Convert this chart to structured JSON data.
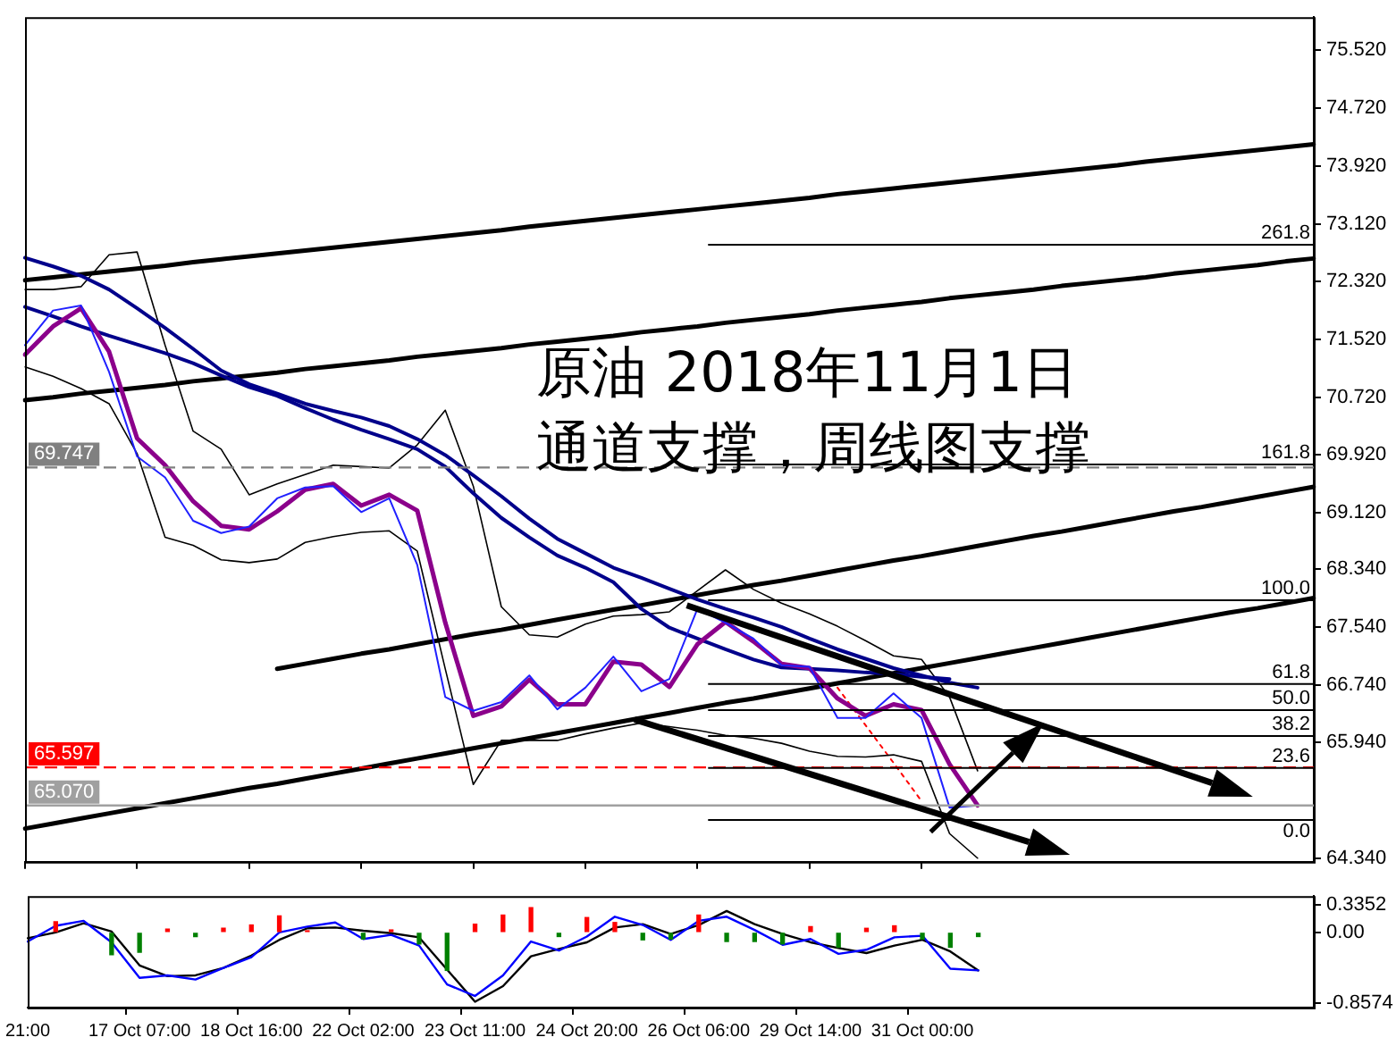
{
  "chart_data": [
    {
      "type": "line",
      "tick_labels": "y",
      "ylim": [
        64.29,
        75.98
      ],
      "categories": [
        "21:00",
        null,
        null,
        null,
        "17 Oct 07:00",
        null,
        null,
        null,
        "18 Oct 16:00",
        null,
        null,
        null,
        "22 Oct 02:00",
        null,
        null,
        null,
        "23 Oct 11:00",
        null,
        null,
        null,
        "24 Oct 20:00",
        null,
        null,
        null,
        "26 Oct 06:00",
        null,
        null,
        null,
        "29 Oct 14:00",
        null,
        null,
        null,
        "31 Oct 00:00",
        null,
        null,
        null,
        null,
        null,
        null,
        null,
        null,
        null,
        null,
        null,
        null,
        null,
        null
      ],
      "yticks": [
        {
          "value": 75.52,
          "label": "75.520"
        },
        {
          "value": 74.72,
          "label": "74.720"
        },
        {
          "value": 73.92,
          "label": "73.920"
        },
        {
          "value": 73.12,
          "label": "73.120"
        },
        {
          "value": 72.32,
          "label": "72.320"
        },
        {
          "value": 71.52,
          "label": "71.520"
        },
        {
          "value": 70.72,
          "label": "70.720"
        },
        {
          "value": 69.92,
          "label": "69.920"
        },
        {
          "value": 69.12,
          "label": "69.120"
        },
        {
          "value": 68.34,
          "label": "68.340"
        },
        {
          "value": 67.54,
          "label": "67.540"
        },
        {
          "value": 66.74,
          "label": "66.740"
        },
        {
          "value": 65.94,
          "label": "65.940"
        },
        {
          "value": 64.34,
          "label": "64.340"
        }
      ],
      "annotations": [
        "原油 2018年11月1日",
        "通道支撑，周线图支撑",
        {
          "text": "261.8",
          "y": 72.83
        },
        {
          "text": "161.8",
          "y": 69.79
        },
        {
          "text": "100.0",
          "y": 67.91
        },
        {
          "text": "61.8",
          "y": 66.75
        },
        {
          "text": "50.0",
          "y": 66.39
        },
        {
          "text": "38.2",
          "y": 66.03
        },
        {
          "text": "23.6",
          "y": 65.59
        },
        {
          "text": "0.0",
          "y": 64.87
        }
      ],
      "series": [
        {
          "color": "#2020ff",
          "values": [
            71.44,
            71.92,
            71.99,
            71.07,
            69.9,
            69.61,
            69.01,
            68.84,
            68.93,
            69.32,
            69.47,
            69.49,
            69.13,
            69.32,
            68.4,
            66.57,
            66.38,
            66.5,
            66.87,
            66.4,
            66.7,
            67.13,
            66.65,
            66.82,
            67.79,
            67.6,
            67.38,
            67.01,
            66.99,
            66.28,
            66.28,
            66.62,
            66.28,
            65.04,
            65.07,
            null,
            null,
            null,
            null,
            null,
            null,
            null,
            null,
            null,
            null,
            null,
            null
          ]
        },
        {
          "color": "#8b008b",
          "values": [
            71.31,
            71.7,
            71.95,
            71.35,
            70.15,
            69.78,
            69.28,
            68.94,
            68.89,
            69.14,
            69.44,
            69.52,
            69.22,
            69.37,
            69.15,
            67.6,
            66.31,
            66.44,
            66.81,
            66.47,
            66.47,
            67.06,
            67.02,
            66.71,
            67.3,
            67.61,
            67.34,
            67.03,
            66.97,
            66.55,
            66.31,
            66.47,
            66.39,
            65.64,
            65.07,
            null,
            null,
            null,
            null,
            null,
            null,
            null,
            null,
            null,
            null,
            null,
            null
          ]
        },
        {
          "color": "#00008b",
          "values": [
            72.65,
            72.53,
            72.4,
            72.21,
            71.95,
            71.68,
            71.39,
            71.09,
            70.9,
            70.77,
            70.63,
            70.53,
            70.44,
            70.32,
            70.14,
            69.92,
            69.64,
            69.35,
            69.04,
            68.76,
            68.56,
            68.36,
            68.22,
            68.07,
            67.92,
            67.79,
            67.67,
            67.54,
            67.38,
            67.23,
            67.1,
            66.97,
            66.87,
            66.77,
            66.7,
            null,
            null,
            null,
            null,
            null,
            null,
            null,
            null,
            null,
            null,
            null,
            null
          ]
        },
        {
          "color": "#00008b",
          "values": [
            71.97,
            71.84,
            71.7,
            71.57,
            71.45,
            71.33,
            71.19,
            71.02,
            70.86,
            70.74,
            70.57,
            70.41,
            70.27,
            70.14,
            70.0,
            69.76,
            69.39,
            69.05,
            68.78,
            68.53,
            68.36,
            68.16,
            67.79,
            67.53,
            67.38,
            67.23,
            67.09,
            66.98,
            66.96,
            66.94,
            66.91,
            66.89,
            66.85,
            66.82,
            null,
            null,
            null,
            null,
            null,
            null,
            null,
            null,
            null,
            null,
            null,
            null,
            null
          ]
        },
        {
          "color": "#000000",
          "values": [
            72.21,
            72.21,
            72.25,
            72.69,
            72.73,
            71.44,
            70.25,
            70.0,
            69.37,
            69.52,
            69.65,
            69.78,
            69.76,
            69.74,
            70.06,
            70.54,
            69.49,
            67.82,
            67.43,
            67.4,
            67.58,
            67.69,
            67.71,
            67.75,
            68.04,
            68.33,
            68.06,
            67.87,
            67.72,
            67.55,
            67.35,
            67.14,
            67.09,
            66.57,
            65.55,
            null,
            null,
            null,
            null,
            null,
            null,
            null,
            null,
            null,
            null,
            null,
            null
          ]
        },
        {
          "color": "#000000",
          "values": [
            71.14,
            71.01,
            70.84,
            70.63,
            69.94,
            68.78,
            68.67,
            68.47,
            68.43,
            68.48,
            68.71,
            68.79,
            68.85,
            68.87,
            68.59,
            66.96,
            65.36,
            65.97,
            65.97,
            65.97,
            66.06,
            66.14,
            66.21,
            66.16,
            66.11,
            66.04,
            66.0,
            65.93,
            65.82,
            65.75,
            65.74,
            65.77,
            65.68,
            64.68,
            64.34,
            null,
            null,
            null,
            null,
            null,
            null,
            null,
            null,
            null,
            null,
            null,
            null
          ]
        },
        {
          "color": "#000000",
          "values": [
            72.34,
            72.38,
            72.42,
            72.46,
            72.5,
            72.54,
            72.59,
            72.63,
            72.67,
            72.71,
            72.75,
            72.79,
            72.83,
            72.87,
            72.91,
            72.95,
            72.99,
            73.03,
            73.08,
            73.12,
            73.16,
            73.2,
            73.24,
            73.28,
            73.32,
            73.36,
            73.4,
            73.44,
            73.48,
            73.53,
            73.57,
            73.61,
            73.65,
            73.69,
            73.73,
            73.77,
            73.81,
            73.85,
            73.89,
            73.93,
            73.98,
            74.02,
            74.06,
            74.1,
            74.14,
            74.18,
            74.22
          ]
        },
        {
          "color": "#000000",
          "values": [
            70.68,
            70.72,
            70.77,
            70.81,
            70.85,
            70.89,
            70.94,
            70.98,
            71.02,
            71.06,
            71.11,
            71.15,
            71.19,
            71.23,
            71.28,
            71.32,
            71.36,
            71.4,
            71.45,
            71.49,
            71.53,
            71.57,
            71.62,
            71.66,
            71.7,
            71.75,
            71.79,
            71.83,
            71.87,
            71.92,
            71.96,
            72.0,
            72.04,
            72.09,
            72.13,
            72.17,
            72.21,
            72.26,
            72.3,
            72.34,
            72.38,
            72.43,
            72.47,
            72.51,
            72.55,
            72.6,
            72.64
          ]
        },
        {
          "color": "#000000",
          "values": [
            null,
            null,
            null,
            null,
            null,
            null,
            null,
            null,
            null,
            66.96,
            67.03,
            67.1,
            67.17,
            67.23,
            67.3,
            67.37,
            67.44,
            67.5,
            67.57,
            67.64,
            67.71,
            67.78,
            67.84,
            67.91,
            67.98,
            68.05,
            68.12,
            68.18,
            68.25,
            68.32,
            68.39,
            68.46,
            68.52,
            68.59,
            68.66,
            68.73,
            68.8,
            68.86,
            68.93,
            69.0,
            69.07,
            69.14,
            69.2,
            69.27,
            69.34,
            69.41,
            69.48
          ]
        },
        {
          "color": "#000000",
          "values": [
            64.75,
            64.82,
            64.89,
            64.96,
            65.03,
            65.1,
            65.17,
            65.24,
            65.31,
            65.37,
            65.44,
            65.51,
            65.58,
            65.65,
            65.72,
            65.79,
            65.86,
            65.93,
            66.0,
            66.07,
            66.14,
            66.21,
            66.28,
            66.35,
            66.42,
            66.49,
            66.55,
            66.62,
            66.69,
            66.76,
            66.83,
            66.9,
            66.97,
            67.04,
            67.11,
            67.18,
            67.25,
            67.32,
            67.39,
            67.46,
            67.53,
            67.6,
            67.67,
            67.74,
            67.8,
            67.87,
            67.94
          ]
        },
        {
          "color": "#ff0000",
          "line_style": "dotted",
          "values": [
            null,
            null,
            null,
            null,
            null,
            null,
            null,
            null,
            null,
            null,
            null,
            null,
            null,
            null,
            null,
            null,
            null,
            null,
            null,
            null,
            null,
            null,
            null,
            null,
            null,
            null,
            null,
            null,
            null,
            66.7,
            66.18,
            65.66,
            65.13,
            null,
            null,
            null,
            null,
            null,
            null,
            null,
            null,
            null,
            null,
            null,
            null,
            null,
            null
          ]
        }
      ],
      "ref_lines": [
        {
          "axis": "y",
          "value": 69.747,
          "label": "69.747",
          "color": "#808080",
          "line_style": "dashed"
        },
        {
          "axis": "y",
          "value": 65.597,
          "label": "65.597",
          "color": "#ff0000",
          "line_style": "dashed"
        },
        {
          "axis": "y",
          "value": 65.07,
          "label": "65.070",
          "color": "#a0a0a0"
        },
        {
          "axis": "y",
          "value": 72.83,
          "color": "#000000"
        },
        {
          "axis": "y",
          "value": 69.79,
          "color": "#000000"
        },
        {
          "axis": "y",
          "value": 67.91,
          "color": "#000000"
        },
        {
          "axis": "y",
          "value": 66.75,
          "color": "#000000"
        },
        {
          "axis": "y",
          "value": 66.39,
          "color": "#000000"
        },
        {
          "axis": "y",
          "value": 66.03,
          "color": "#000000"
        },
        {
          "axis": "y",
          "value": 65.59,
          "color": "#000000"
        },
        {
          "axis": "y",
          "value": 64.87,
          "color": "#000000"
        }
      ]
    },
    {
      "type": "line",
      "ylim": [
        -0.91,
        0.44
      ],
      "yticks": [
        0.3352,
        {
          "value": 0,
          "label": "0.00"
        },
        -0.8574
      ],
      "series": [
        {
          "type": "bar",
          "color": "#ff0000",
          "values": [
            null,
            0.13,
            null,
            null,
            null,
            0.04,
            null,
            0.05,
            0.09,
            0.2,
            0.02,
            null,
            null,
            0.03,
            null,
            null,
            0.1,
            0.21,
            0.3,
            null,
            0.18,
            0.12,
            null,
            null,
            0.21,
            null,
            null,
            null,
            0.07,
            null,
            0.05,
            0.08,
            null,
            null,
            null,
            null,
            null,
            null,
            null,
            null,
            null,
            null,
            null,
            null,
            null,
            null,
            null
          ]
        },
        {
          "type": "bar",
          "color": "#008000",
          "values": [
            null,
            null,
            null,
            -0.27,
            -0.24,
            null,
            -0.05,
            null,
            null,
            null,
            null,
            null,
            -0.08,
            null,
            -0.14,
            -0.46,
            null,
            null,
            null,
            -0.05,
            null,
            null,
            -0.09,
            -0.08,
            null,
            -0.11,
            -0.11,
            -0.14,
            null,
            -0.18,
            null,
            null,
            -0.08,
            -0.18,
            -0.05,
            null,
            null,
            null,
            null,
            null,
            null,
            null,
            null,
            null,
            null,
            null,
            null
          ]
        },
        {
          "color": "#0000ff",
          "values": [
            -0.11,
            0.08,
            0.14,
            -0.12,
            -0.55,
            -0.52,
            -0.57,
            -0.43,
            -0.3,
            0.0,
            0.07,
            0.12,
            -0.08,
            -0.03,
            -0.16,
            -0.63,
            -0.77,
            -0.52,
            -0.11,
            -0.22,
            -0.05,
            0.19,
            0.09,
            -0.09,
            0.14,
            0.19,
            0.03,
            -0.15,
            -0.08,
            -0.26,
            -0.21,
            -0.06,
            -0.04,
            -0.44,
            -0.46,
            null,
            null,
            null,
            null,
            null,
            null,
            null,
            null,
            null,
            null,
            null,
            null
          ]
        },
        {
          "color": "#000000",
          "values": [
            -0.07,
            0.0,
            0.11,
            0.01,
            -0.4,
            -0.53,
            -0.52,
            -0.43,
            -0.28,
            -0.09,
            0.05,
            0.06,
            0.02,
            -0.01,
            -0.06,
            -0.45,
            -0.84,
            -0.65,
            -0.29,
            -0.2,
            -0.12,
            0.06,
            0.1,
            -0.02,
            0.09,
            0.26,
            0.1,
            -0.02,
            -0.12,
            -0.19,
            -0.25,
            -0.16,
            -0.09,
            -0.23,
            -0.46,
            null,
            null,
            null,
            null,
            null,
            null,
            null,
            null,
            null,
            null,
            null,
            null
          ]
        }
      ]
    }
  ]
}
